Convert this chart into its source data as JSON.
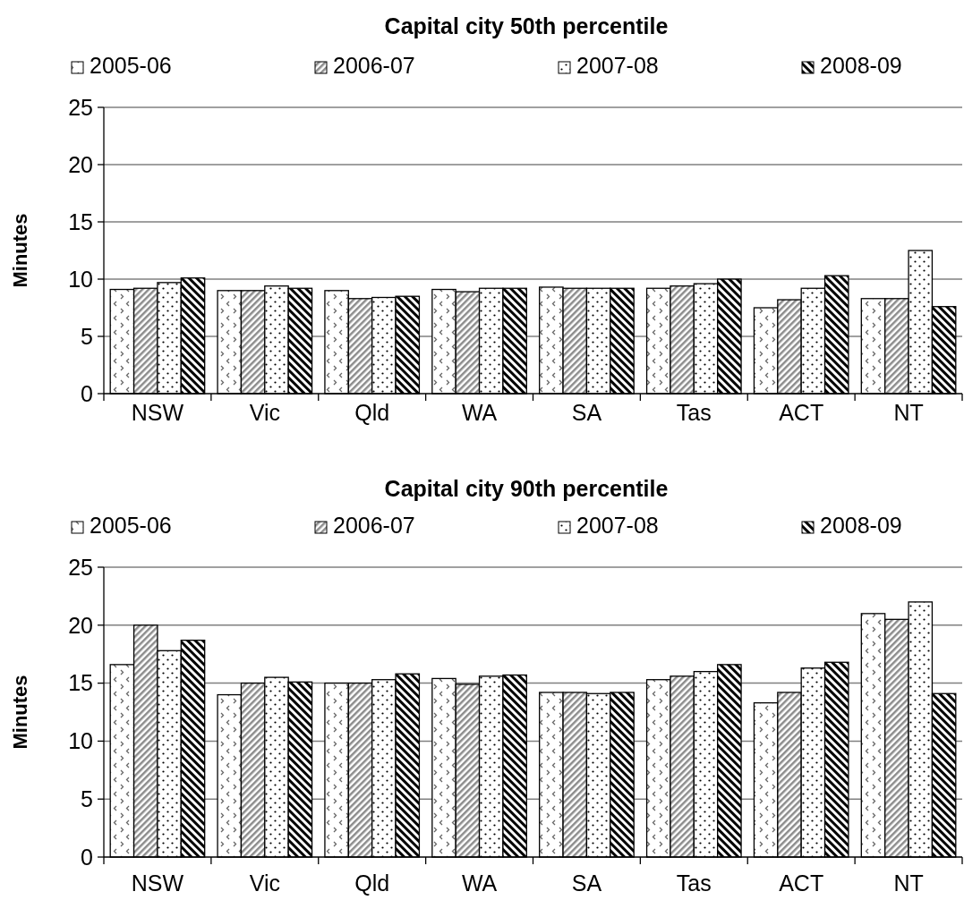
{
  "chart_data": [
    {
      "type": "bar",
      "title": "Capital city 50th percentile",
      "ylabel": "Minutes",
      "categories": [
        "NSW",
        "Vic",
        "Qld",
        "WA",
        "SA",
        "Tas",
        "ACT",
        "NT"
      ],
      "series": [
        {
          "name": "2005-06",
          "color": "#000000",
          "values": [
            9.1,
            9.0,
            9.0,
            9.1,
            9.3,
            9.2,
            7.5,
            8.3
          ]
        },
        {
          "name": "2006-07",
          "color": "#000000",
          "values": [
            9.2,
            9.0,
            8.3,
            8.9,
            9.2,
            9.4,
            8.2,
            8.3
          ]
        },
        {
          "name": "2007-08",
          "color": "#000000",
          "values": [
            9.7,
            9.4,
            8.4,
            9.2,
            9.2,
            9.6,
            9.2,
            12.5
          ]
        },
        {
          "name": "2008-09",
          "color": "#000000",
          "values": [
            10.1,
            9.2,
            8.5,
            9.2,
            9.2,
            10.0,
            10.3,
            7.6
          ]
        }
      ],
      "ylim": [
        0,
        25
      ],
      "yticks": [
        0,
        5,
        10,
        15,
        20,
        25
      ],
      "grid": "y",
      "legend": "top"
    },
    {
      "type": "bar",
      "title": "Capital city 90th percentile",
      "ylabel": "Minutes",
      "categories": [
        "NSW",
        "Vic",
        "Qld",
        "WA",
        "SA",
        "Tas",
        "ACT",
        "NT"
      ],
      "series": [
        {
          "name": "2005-06",
          "color": "#000000",
          "values": [
            16.6,
            14.0,
            15.0,
            15.4,
            14.2,
            15.3,
            13.3,
            21.0
          ]
        },
        {
          "name": "2006-07",
          "color": "#000000",
          "values": [
            20.0,
            15.0,
            15.0,
            14.9,
            14.2,
            15.6,
            14.2,
            20.5
          ]
        },
        {
          "name": "2007-08",
          "color": "#000000",
          "values": [
            17.8,
            15.5,
            15.3,
            15.6,
            14.1,
            16.0,
            16.3,
            22.0
          ]
        },
        {
          "name": "2008-09",
          "color": "#000000",
          "values": [
            18.7,
            15.1,
            15.8,
            15.7,
            14.2,
            16.6,
            16.8,
            14.1
          ]
        }
      ],
      "ylim": [
        0,
        25
      ],
      "yticks": [
        0,
        5,
        10,
        15,
        20,
        25
      ],
      "grid": "y",
      "legend": "top"
    }
  ]
}
